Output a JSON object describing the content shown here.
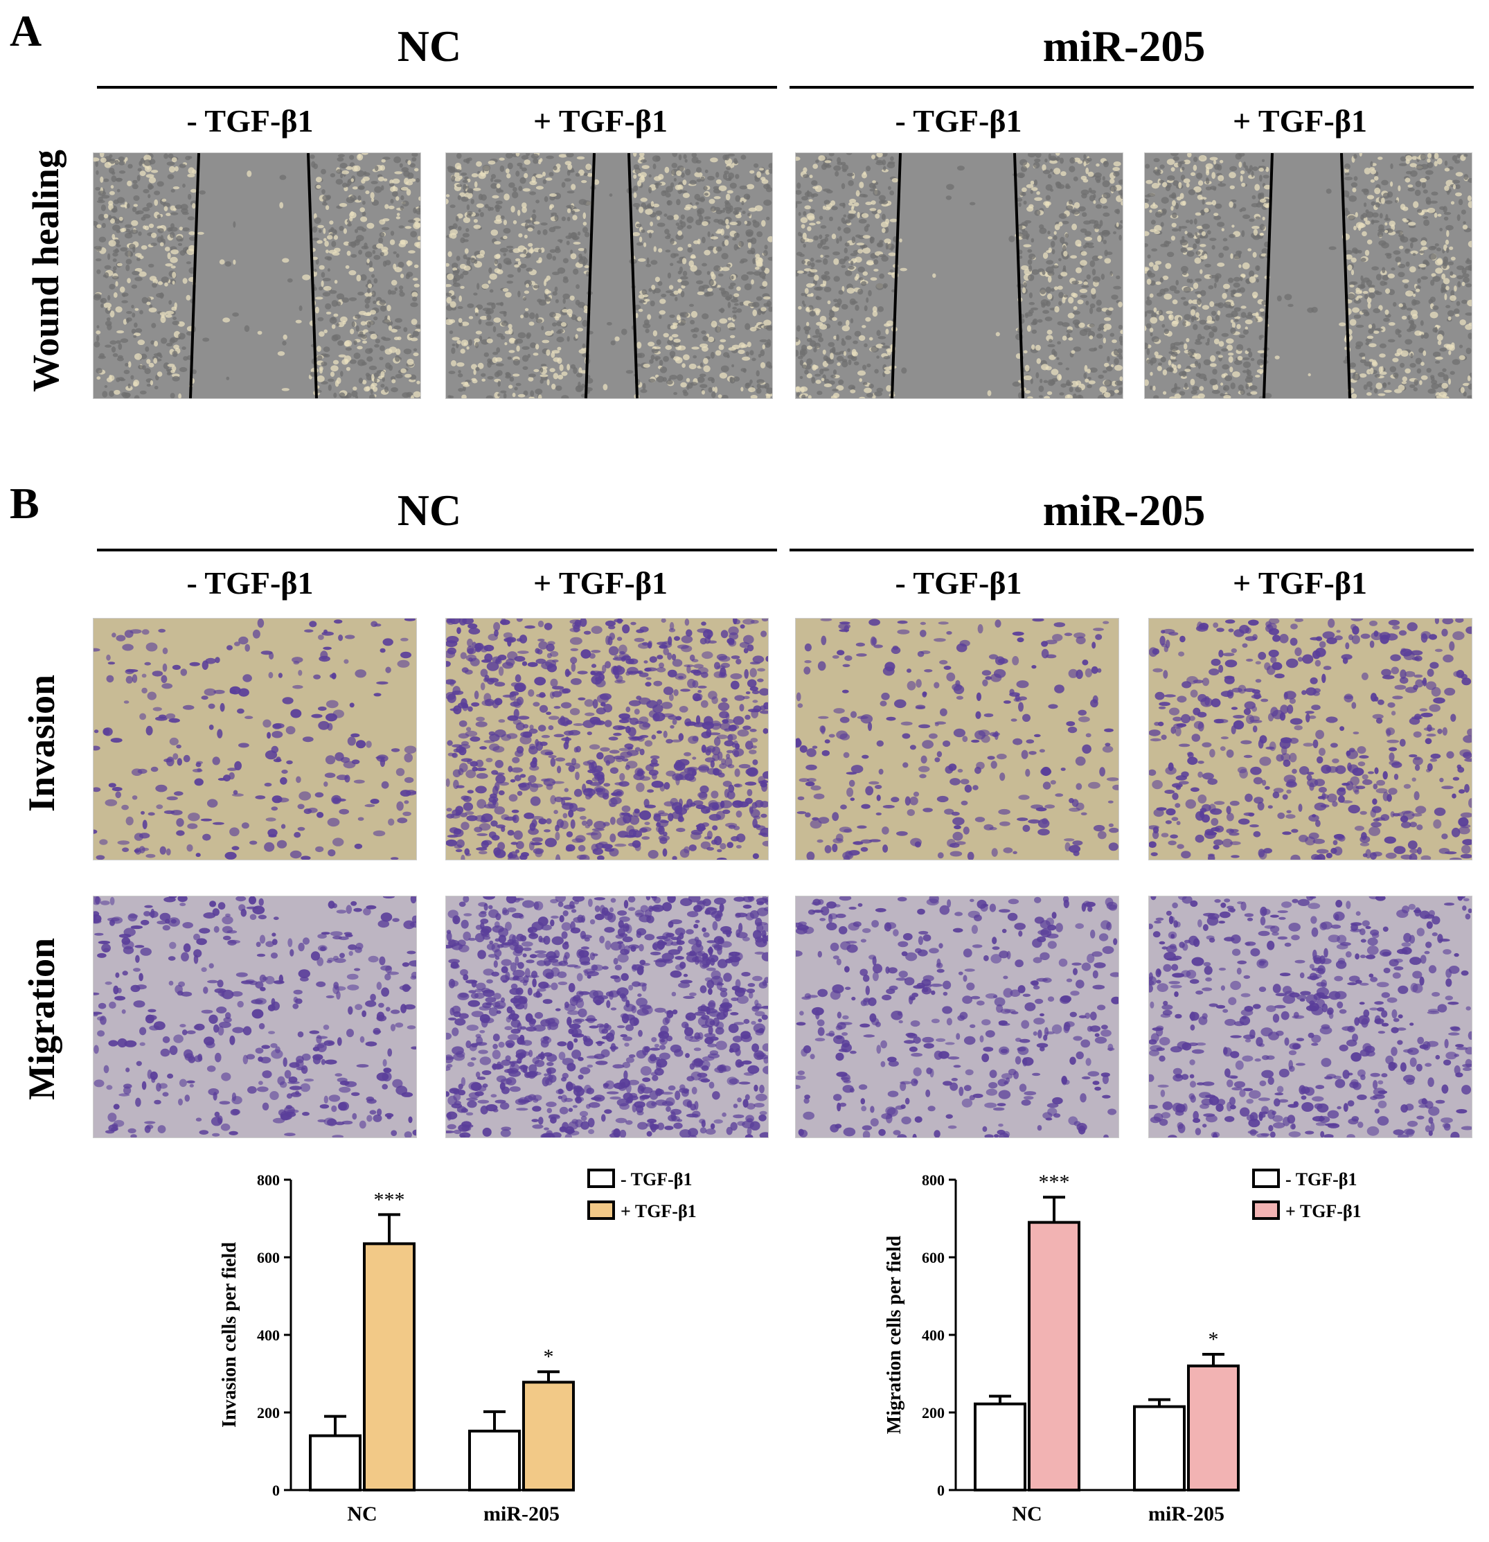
{
  "panel_a": {
    "letter": "A",
    "groups": [
      "NC",
      "miR-205"
    ],
    "conditions": [
      "- TGF-β1",
      "+ TGF-β1",
      "- TGF-β1",
      "+ TGF-β1"
    ],
    "row_label": "Wound healing"
  },
  "panel_b": {
    "letter": "B",
    "groups": [
      "NC",
      "miR-205"
    ],
    "conditions": [
      "- TGF-β1",
      "+ TGF-β1",
      "- TGF-β1",
      "+ TGF-β1"
    ],
    "row_labels": [
      "Invasion",
      "Migration"
    ]
  },
  "colors": {
    "wound_bg": "#8f8f8f",
    "invasion_bg": "#c8bb95",
    "migration_bg": "#bdb5c2",
    "stain": "#5a3e9a",
    "invasion_bar": "#f2c987",
    "migration_bar": "#f2b3b3"
  },
  "chart_data": [
    {
      "type": "bar",
      "categories": [
        "NC",
        "miR-205"
      ],
      "series": [
        {
          "name": "- TGF-β1",
          "values": [
            140,
            152
          ],
          "errors": [
            50,
            50
          ]
        },
        {
          "name": "+ TGF-β1",
          "values": [
            635,
            278
          ],
          "errors": [
            75,
            27
          ]
        }
      ],
      "significance": [
        [
          "",
          "***"
        ],
        [
          "",
          "*"
        ]
      ],
      "ylabel": "Invasion cells per field",
      "ylim": [
        0,
        800
      ],
      "yticks": [
        "0",
        "200",
        "400",
        "600",
        "800"
      ],
      "legend_position": "top-right",
      "fill_color": "#f2c987"
    },
    {
      "type": "bar",
      "categories": [
        "NC",
        "miR-205"
      ],
      "series": [
        {
          "name": "- TGF-β1",
          "values": [
            222,
            215
          ],
          "errors": [
            20,
            18
          ]
        },
        {
          "name": "+ TGF-β1",
          "values": [
            690,
            320
          ],
          "errors": [
            65,
            30
          ]
        }
      ],
      "significance": [
        [
          "",
          "***"
        ],
        [
          "",
          "*"
        ]
      ],
      "ylabel": "Migration cells per field",
      "ylim": [
        0,
        800
      ],
      "yticks": [
        "0",
        "200",
        "400",
        "600",
        "800"
      ],
      "legend_position": "top-right",
      "fill_color": "#f2b3b3"
    }
  ]
}
